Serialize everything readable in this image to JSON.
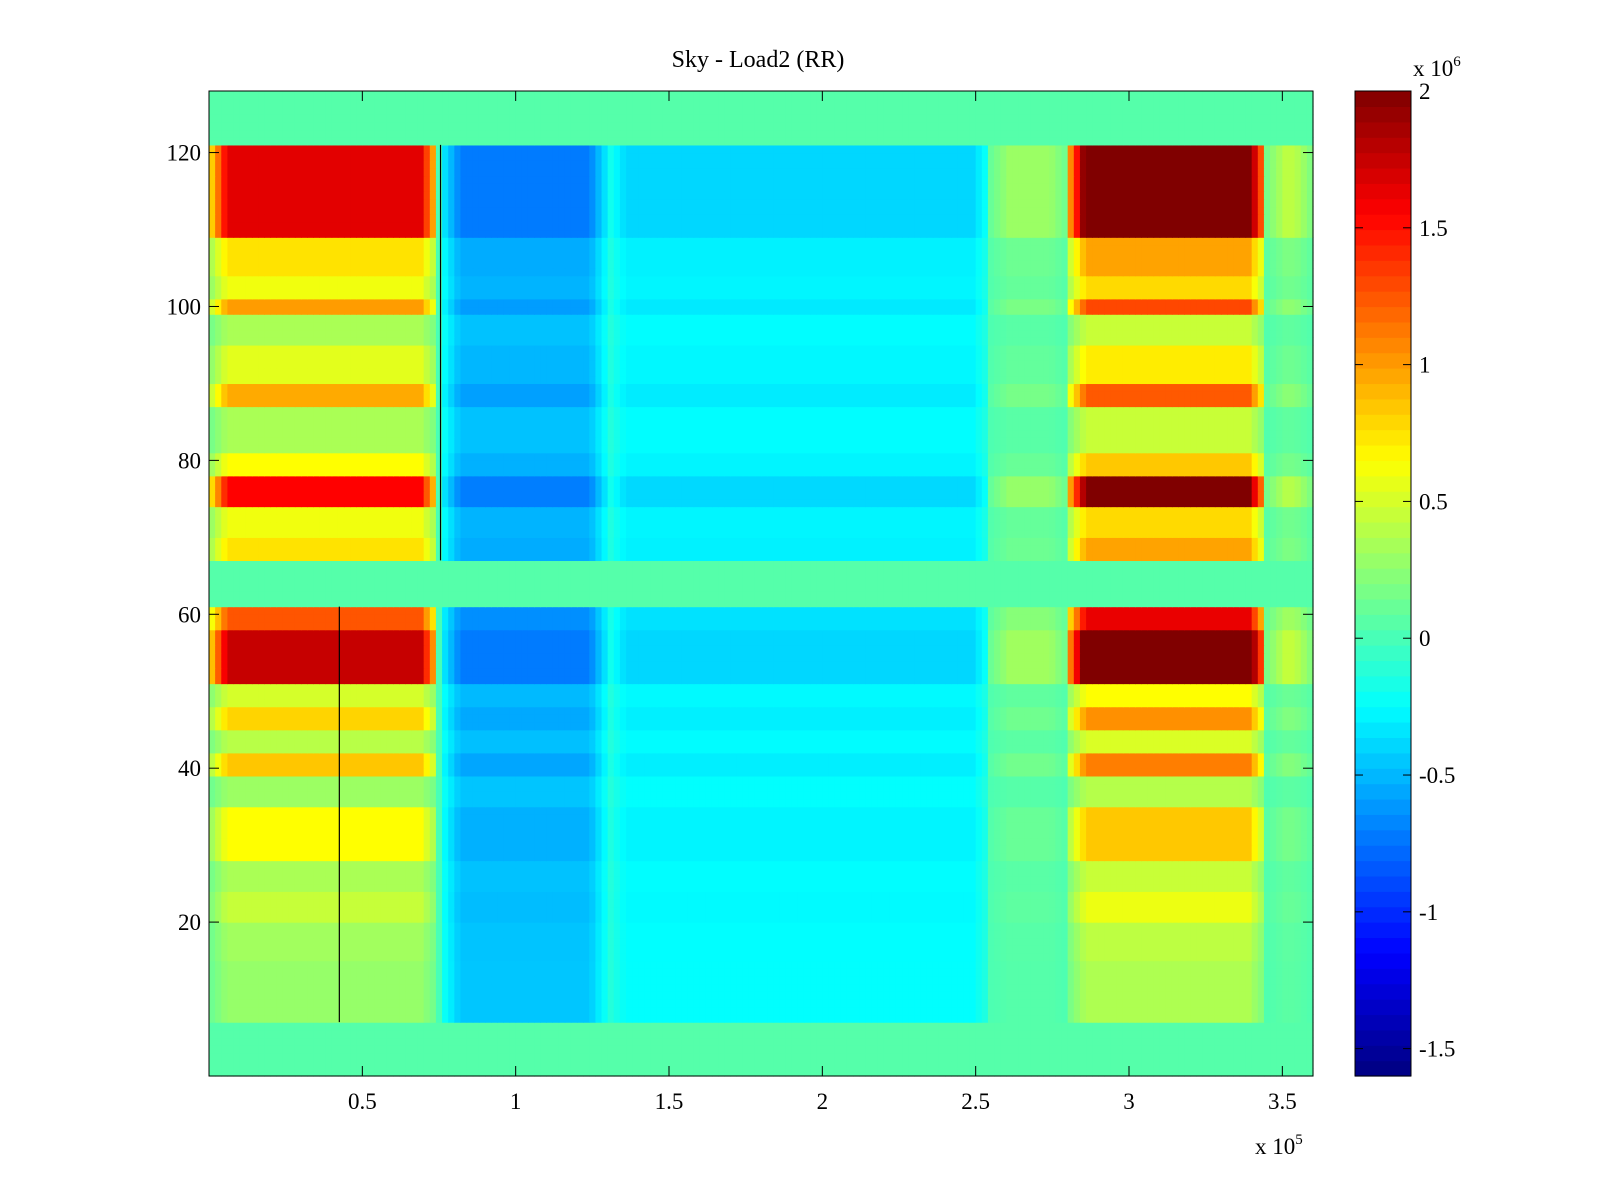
{
  "chart_data": {
    "type": "heatmap",
    "title": "Sky - Load2 (RR)",
    "xlabel": "",
    "ylabel": "",
    "x_range": [
      0,
      360000
    ],
    "y_range": [
      0,
      128
    ],
    "x_ticks": [
      0.5,
      1,
      1.5,
      2,
      2.5,
      3,
      3.5
    ],
    "x_tick_labels": [
      "0.5",
      "1",
      "1.5",
      "2",
      "2.5",
      "3",
      "3.5"
    ],
    "x_multiplier": {
      "base": "x 10",
      "exponent": "5"
    },
    "y_ticks": [
      20,
      40,
      60,
      80,
      100,
      120
    ],
    "y_tick_labels": [
      "20",
      "40",
      "60",
      "80",
      "100",
      "120"
    ],
    "colorbar": {
      "colormap": "jet",
      "range": [
        -1.6,
        2.0
      ],
      "ticks": [
        -1.5,
        -1,
        -0.5,
        0,
        0.5,
        1,
        1.5,
        2
      ],
      "tick_labels": [
        "-1.5",
        "-1",
        "-0.5",
        "0",
        "0.5",
        "1",
        "1.5",
        "2"
      ],
      "multiplier": {
        "base": "x 10",
        "exponent": "6"
      }
    },
    "grid": false,
    "value_units_scale": 1000000,
    "masked_rows": [
      [
        0,
        7
      ],
      [
        61,
        67
      ],
      [
        121,
        128
      ]
    ],
    "masked_value": 0.05,
    "column_bands": [
      {
        "x_range": [
          0,
          75000
        ],
        "peak": 1.0
      },
      {
        "x_range": [
          76000,
          130000
        ],
        "peak": -0.55
      },
      {
        "x_range": [
          130000,
          255000
        ],
        "peak": -0.3
      },
      {
        "x_range": [
          255000,
          280000
        ],
        "peak": 0.18
      },
      {
        "x_range": [
          280000,
          345000
        ],
        "peak": 1.3
      },
      {
        "x_range": [
          345000,
          360000
        ],
        "peak": 0.25
      }
    ],
    "row_profile": [
      {
        "y_range": [
          7,
          15
        ],
        "weight": 0.28
      },
      {
        "y_range": [
          15,
          20
        ],
        "weight": 0.32
      },
      {
        "y_range": [
          20,
          24
        ],
        "weight": 0.45
      },
      {
        "y_range": [
          24,
          28
        ],
        "weight": 0.35
      },
      {
        "y_range": [
          28,
          35
        ],
        "weight": 0.65
      },
      {
        "y_range": [
          35,
          39
        ],
        "weight": 0.3
      },
      {
        "y_range": [
          39,
          42
        ],
        "weight": 0.85
      },
      {
        "y_range": [
          42,
          45
        ],
        "weight": 0.4
      },
      {
        "y_range": [
          45,
          48
        ],
        "weight": 0.8
      },
      {
        "y_range": [
          48,
          51
        ],
        "weight": 0.5
      },
      {
        "y_range": [
          51,
          58
        ],
        "weight": 1.75
      },
      {
        "y_range": [
          58,
          61
        ],
        "weight": 1.25
      },
      {
        "y_range": [
          67,
          70
        ],
        "weight": 0.75
      },
      {
        "y_range": [
          70,
          74
        ],
        "weight": 0.6
      },
      {
        "y_range": [
          74,
          78
        ],
        "weight": 1.55
      },
      {
        "y_range": [
          78,
          81
        ],
        "weight": 0.65
      },
      {
        "y_range": [
          81,
          87
        ],
        "weight": 0.35
      },
      {
        "y_range": [
          87,
          90
        ],
        "weight": 0.95
      },
      {
        "y_range": [
          90,
          95
        ],
        "weight": 0.55
      },
      {
        "y_range": [
          95,
          99
        ],
        "weight": 0.35
      },
      {
        "y_range": [
          99,
          101
        ],
        "weight": 1.0
      },
      {
        "y_range": [
          101,
          104
        ],
        "weight": 0.6
      },
      {
        "y_range": [
          104,
          109
        ],
        "weight": 0.75
      },
      {
        "y_range": [
          109,
          121
        ],
        "weight": 1.65
      }
    ],
    "vertical_streaks": [
      {
        "x": 75500,
        "y_range": [
          67,
          121
        ]
      },
      {
        "x": 42500,
        "y_range": [
          7,
          61
        ]
      }
    ]
  }
}
